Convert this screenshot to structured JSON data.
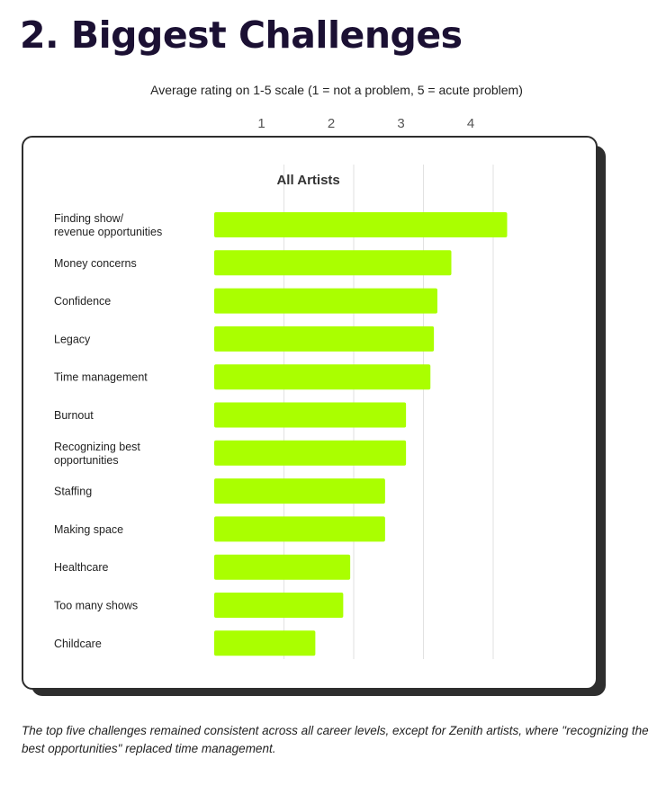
{
  "heading": "2. Biggest Challenges",
  "subtitle": "Average rating on 1-5 scale (1 = not a problem, 5 = acute problem)",
  "caption": "The top five challenges remained consistent across all career levels, except for Zenith artists, where \"recognizing the best opportunities\" replaced time management.",
  "colors": {
    "bar": "#aaff00",
    "gridline": "#e2e2e2",
    "heading": "#1b1033",
    "card_border": "#2e2e2e"
  },
  "chart_data": {
    "type": "bar",
    "orientation": "horizontal",
    "title": "All Artists",
    "xlim": [
      0,
      4.5
    ],
    "x_ticks": [
      1,
      2,
      3,
      4
    ],
    "grid": "vertical",
    "categories": [
      [
        "Finding show/",
        "revenue opportunities"
      ],
      [
        "Money concerns"
      ],
      [
        "Confidence"
      ],
      [
        "Legacy"
      ],
      [
        "Time management"
      ],
      [
        "Burnout"
      ],
      [
        "Recognizing best",
        "opportunities"
      ],
      [
        "Staffing"
      ],
      [
        "Making space"
      ],
      [
        "Healthcare"
      ],
      [
        "Too many shows"
      ],
      [
        "Childcare"
      ]
    ],
    "series": [
      {
        "values": [
          4.2,
          3.4,
          3.2,
          3.15,
          3.1,
          2.75,
          2.75,
          2.45,
          2.45,
          1.95,
          1.85,
          1.45
        ]
      }
    ]
  }
}
